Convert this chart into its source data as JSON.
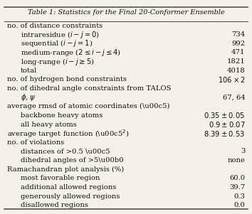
{
  "title": "Table 1: Statistics for the Final 20-Conformer Ensemble",
  "rows": [
    {
      "label": "no. of distance constraints",
      "value": "",
      "indent": 0
    },
    {
      "label": "intraresidue ($i - j = 0$)",
      "value": "734",
      "indent": 1
    },
    {
      "label": "sequential ($i - j = 1$)",
      "value": "992",
      "indent": 1
    },
    {
      "label": "medium-range ($2 \\leq i - j \\leq 4$)",
      "value": "471",
      "indent": 1
    },
    {
      "label": "long-range ($i - j \\geq 5$)",
      "value": "1821",
      "indent": 1
    },
    {
      "label": "total",
      "value": "4018",
      "indent": 1
    },
    {
      "label": "no. of hydrogen bond constraints",
      "value": "$106 \\times 2$",
      "indent": 0
    },
    {
      "label": "no. of dihedral angle constraints from TALOS",
      "value": "",
      "indent": 0
    },
    {
      "label": "$\\phi$, $\\psi$",
      "value": "67, 64",
      "indent": 1
    },
    {
      "label": "average rmsd of atomic coordinates (\\u00c5)",
      "value": "",
      "indent": 0
    },
    {
      "label": "backbone heavy atoms",
      "value": "$0.35 \\pm 0.05$",
      "indent": 1
    },
    {
      "label": "all heavy atoms",
      "value": "$0.9 \\pm 0.07$",
      "indent": 1
    },
    {
      "label": "average target function (\\u00c5$^2$)",
      "value": "$8.39 \\pm 0.53$",
      "indent": 0
    },
    {
      "label": "no. of violations",
      "value": "",
      "indent": 0
    },
    {
      "label": "distances of >0.5 \\u00c5",
      "value": "3",
      "indent": 1
    },
    {
      "label": "dihedral angles of >5\\u00b0",
      "value": "none",
      "indent": 1
    },
    {
      "label": "Ramachandran plot analysis (%)",
      "value": "",
      "indent": 0
    },
    {
      "label": "most favorable region",
      "value": "60.0",
      "indent": 1
    },
    {
      "label": "additional allowed regions",
      "value": "39.7",
      "indent": 1
    },
    {
      "label": "generously allowed regions",
      "value": "0.3",
      "indent": 1
    },
    {
      "label": "disallowed regions",
      "value": "0.0",
      "indent": 1
    }
  ],
  "bg_color": "#f5f0e8",
  "border_color": "#555555",
  "text_color": "#111111",
  "title_color": "#111111",
  "font_size": 7.2,
  "title_font_size": 7.0,
  "indent_size": 0.055
}
